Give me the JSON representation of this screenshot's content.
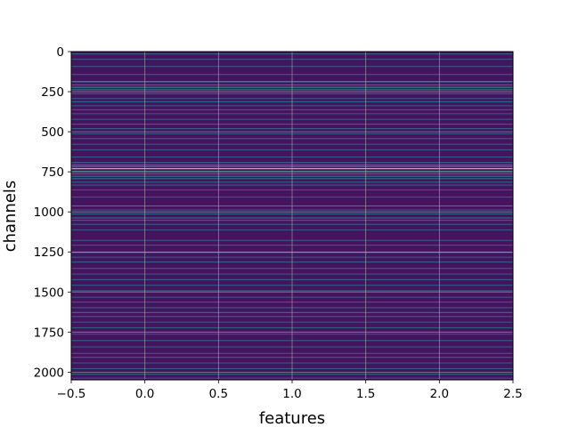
{
  "chart_data": {
    "type": "heatmap",
    "title": "",
    "xlabel": "features",
    "ylabel": "channels",
    "xlim": [
      -0.5,
      2.5
    ],
    "ylim": [
      2048,
      0
    ],
    "y_inverted": true,
    "grid": true,
    "n_channels": 2048,
    "n_features": 3,
    "colormap": "viridis",
    "background_color": "#44145f",
    "xticks": [
      -0.5,
      0.0,
      0.5,
      1.0,
      1.5,
      2.0,
      2.5
    ],
    "xtick_labels": [
      "−0.5",
      "0.0",
      "0.5",
      "1.0",
      "1.5",
      "2.0",
      "2.5"
    ],
    "yticks": [
      0,
      250,
      500,
      750,
      1000,
      1250,
      1500,
      1750,
      2000
    ],
    "ytick_labels": [
      "0",
      "250",
      "500",
      "750",
      "1000",
      "1250",
      "1500",
      "1750",
      "2000"
    ],
    "bands": [
      {
        "channel": 12,
        "value": 0.35
      },
      {
        "channel": 45,
        "value": 0.3
      },
      {
        "channel": 90,
        "value": 0.3
      },
      {
        "channel": 140,
        "value": 0.32
      },
      {
        "channel": 185,
        "value": 0.62
      },
      {
        "channel": 205,
        "value": 0.4
      },
      {
        "channel": 220,
        "value": 0.55
      },
      {
        "channel": 235,
        "value": 0.45
      },
      {
        "channel": 260,
        "value": 0.35
      },
      {
        "channel": 290,
        "value": 0.3
      },
      {
        "channel": 310,
        "value": 0.38
      },
      {
        "channel": 335,
        "value": 0.32
      },
      {
        "channel": 360,
        "value": 0.35
      },
      {
        "channel": 385,
        "value": 0.3
      },
      {
        "channel": 420,
        "value": 0.32
      },
      {
        "channel": 450,
        "value": 0.35
      },
      {
        "channel": 478,
        "value": 0.33
      },
      {
        "channel": 510,
        "value": 0.3
      },
      {
        "channel": 540,
        "value": 0.35
      },
      {
        "channel": 575,
        "value": 0.3
      },
      {
        "channel": 610,
        "value": 0.33
      },
      {
        "channel": 655,
        "value": 0.3
      },
      {
        "channel": 690,
        "value": 0.4
      },
      {
        "channel": 705,
        "value": 0.5
      },
      {
        "channel": 715,
        "value": 0.55
      },
      {
        "channel": 728,
        "value": 0.95
      },
      {
        "channel": 745,
        "value": 0.5
      },
      {
        "channel": 760,
        "value": 0.45
      },
      {
        "channel": 775,
        "value": 0.48
      },
      {
        "channel": 790,
        "value": 0.42
      },
      {
        "channel": 812,
        "value": 0.35
      },
      {
        "channel": 830,
        "value": 0.32
      },
      {
        "channel": 860,
        "value": 0.3
      },
      {
        "channel": 905,
        "value": 0.3
      },
      {
        "channel": 960,
        "value": 0.48
      },
      {
        "channel": 985,
        "value": 0.3
      },
      {
        "channel": 1010,
        "value": 0.35
      },
      {
        "channel": 1035,
        "value": 0.42
      },
      {
        "channel": 1050,
        "value": 0.38
      },
      {
        "channel": 1075,
        "value": 0.3
      },
      {
        "channel": 1110,
        "value": 0.28
      },
      {
        "channel": 1175,
        "value": 0.3
      },
      {
        "channel": 1205,
        "value": 0.33
      },
      {
        "channel": 1250,
        "value": 0.55
      },
      {
        "channel": 1280,
        "value": 0.3
      },
      {
        "channel": 1310,
        "value": 0.32
      },
      {
        "channel": 1350,
        "value": 0.33
      },
      {
        "channel": 1385,
        "value": 0.3
      },
      {
        "channel": 1420,
        "value": 0.35
      },
      {
        "channel": 1455,
        "value": 0.3
      },
      {
        "channel": 1490,
        "value": 0.38
      },
      {
        "channel": 1530,
        "value": 0.3
      },
      {
        "channel": 1560,
        "value": 0.33
      },
      {
        "channel": 1595,
        "value": 0.35
      },
      {
        "channel": 1625,
        "value": 0.45
      },
      {
        "channel": 1650,
        "value": 0.35
      },
      {
        "channel": 1685,
        "value": 0.3
      },
      {
        "channel": 1720,
        "value": 0.32
      },
      {
        "channel": 1760,
        "value": 0.3
      },
      {
        "channel": 1800,
        "value": 0.33
      },
      {
        "channel": 1840,
        "value": 0.3
      },
      {
        "channel": 1880,
        "value": 0.32
      },
      {
        "channel": 1905,
        "value": 0.35
      },
      {
        "channel": 1940,
        "value": 0.3
      },
      {
        "channel": 1975,
        "value": 0.32
      },
      {
        "channel": 2010,
        "value": 0.33
      },
      {
        "channel": 2035,
        "value": 0.3
      }
    ]
  }
}
